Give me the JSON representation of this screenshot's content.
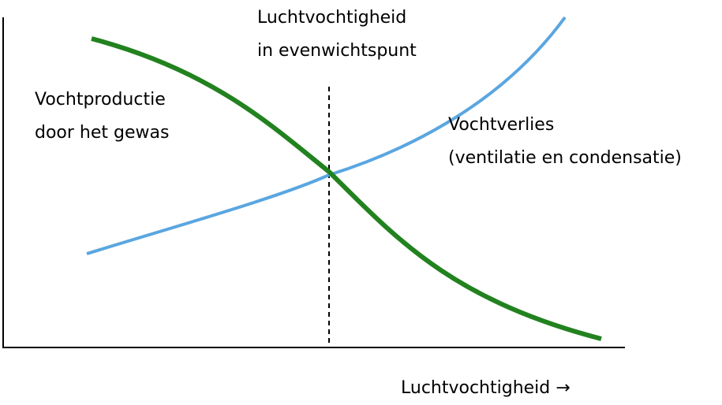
{
  "diagram": {
    "equilibrium_label": [
      "Luchtvochtigheid",
      "in evenwichtspunt"
    ],
    "production_label": [
      "Vochtproductie",
      "door het gewas"
    ],
    "loss_label": [
      "Vochtverlies",
      "(ventilatie en condensatie)"
    ],
    "x_axis_label": "Luchtvochtigheid →",
    "colors": {
      "production_curve": "#22821f",
      "loss_curve": "#5aa6e0",
      "axes": "#000000",
      "equilibrium_line": "#000000"
    }
  }
}
